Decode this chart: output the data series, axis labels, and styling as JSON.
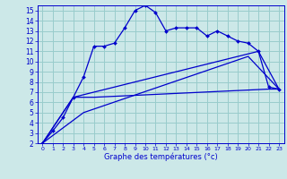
{
  "title": "Graphe des températures (°c)",
  "bg_color": "#cce8e8",
  "plot_bg_color": "#cce8e8",
  "grid_color": "#99cccc",
  "line_color": "#0000cc",
  "xlim": [
    -0.5,
    23.5
  ],
  "ylim": [
    2,
    15.5
  ],
  "xticks": [
    0,
    1,
    2,
    3,
    4,
    5,
    6,
    7,
    8,
    9,
    10,
    11,
    12,
    13,
    14,
    15,
    16,
    17,
    18,
    19,
    20,
    21,
    22,
    23
  ],
  "yticks": [
    2,
    3,
    4,
    5,
    6,
    7,
    8,
    9,
    10,
    11,
    12,
    13,
    14,
    15
  ],
  "line1_x": [
    0,
    1,
    2,
    3,
    4,
    5,
    6,
    7,
    8,
    9,
    10,
    11,
    12,
    13,
    14,
    15,
    16,
    17,
    18,
    19,
    20,
    21,
    22,
    23
  ],
  "line1_y": [
    2.0,
    3.2,
    4.5,
    6.5,
    8.5,
    11.5,
    11.5,
    11.8,
    13.3,
    15.0,
    15.5,
    14.8,
    13.0,
    13.3,
    13.3,
    13.3,
    12.5,
    13.0,
    12.5,
    12.0,
    11.8,
    11.0,
    7.5,
    7.3
  ],
  "line2_x": [
    0,
    3,
    5,
    22,
    23
  ],
  "line2_y": [
    2.0,
    6.5,
    6.5,
    7.3,
    7.3
  ],
  "line3_x": [
    0,
    3,
    21,
    23
  ],
  "line3_y": [
    2.0,
    6.5,
    11.0,
    7.3
  ],
  "line4_x": [
    0,
    4,
    20,
    23
  ],
  "line4_y": [
    2.0,
    5.0,
    10.5,
    7.3
  ],
  "xlabel_fontsize": 6.0,
  "tick_fontsize_x": 4.5,
  "tick_fontsize_y": 5.5
}
